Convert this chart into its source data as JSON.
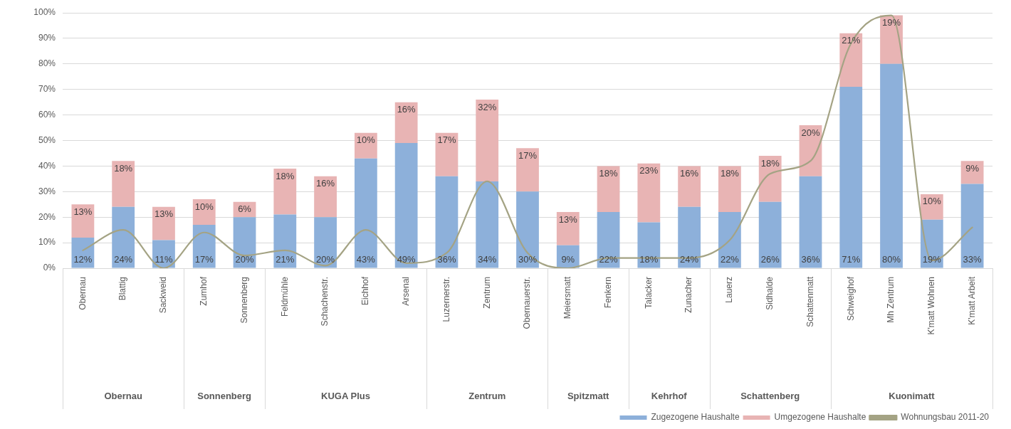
{
  "chart_data": {
    "type": "bar",
    "stacked": true,
    "categories": [
      "Obernau",
      "Blattig",
      "Sackweid",
      "Zumhof",
      "Sonnenberg",
      "Feldmühle",
      "Schachenstr.",
      "Eichhof",
      "Arsenal",
      "Luzernerstr.",
      "Zentrum",
      "Obernauerstr.",
      "Meiersmatt",
      "Fenkern",
      "Talacker",
      "Zunacher",
      "Lauerz",
      "Sidhalde",
      "Schattenmatt",
      "Schweighof",
      "Mh Zentrum",
      "K'matt Wohnen",
      "K'matt Arbeit"
    ],
    "series": [
      {
        "name": "Zugezogene Haushalte",
        "color": "#8db0da",
        "values": [
          12,
          24,
          11,
          17,
          20,
          21,
          20,
          43,
          49,
          36,
          34,
          30,
          9,
          22,
          18,
          24,
          22,
          26,
          36,
          71,
          80,
          19,
          33
        ],
        "value_labels": [
          "12%",
          "24%",
          "11%",
          "17%",
          "20%",
          "21%",
          "20%",
          "43%",
          "49%",
          "36%",
          "34%",
          "30%",
          "9%",
          "22%",
          "18%",
          "24%",
          "22%",
          "26%",
          "36%",
          "71%",
          "80%",
          "19%",
          "33%"
        ]
      },
      {
        "name": "Umgezogene Haushalte",
        "color": "#e8b4b4",
        "values": [
          13,
          18,
          13,
          10,
          6,
          18,
          16,
          10,
          16,
          17,
          32,
          17,
          13,
          18,
          23,
          16,
          18,
          18,
          20,
          21,
          19,
          10,
          9
        ],
        "value_labels": [
          "13%",
          "18%",
          "13%",
          "10%",
          "6%",
          "18%",
          "16%",
          "10%",
          "16%",
          "17%",
          "32%",
          "17%",
          "13%",
          "18%",
          "23%",
          "16%",
          "18%",
          "18%",
          "20%",
          "21%",
          "19%",
          "10%",
          "9%"
        ]
      },
      {
        "name": "Wohnungsbau 2011-20",
        "type": "line",
        "color": "#a4a384",
        "values": [
          7,
          15,
          0,
          14,
          5,
          7,
          1,
          15,
          2,
          6,
          34,
          6,
          0,
          4,
          4,
          4,
          11,
          37,
          42,
          88,
          99,
          3,
          16
        ]
      }
    ],
    "ylim": [
      0,
      100
    ],
    "yticks": [
      {
        "value": 0,
        "label": "0%"
      },
      {
        "value": 10,
        "label": "10%"
      },
      {
        "value": 20,
        "label": "20%"
      },
      {
        "value": 30,
        "label": "30%"
      },
      {
        "value": 40,
        "label": "40%"
      },
      {
        "value": 50,
        "label": "50%"
      },
      {
        "value": 60,
        "label": "60%"
      },
      {
        "value": 70,
        "label": "70%"
      },
      {
        "value": 80,
        "label": "80%"
      },
      {
        "value": 90,
        "label": "90%"
      },
      {
        "value": 100,
        "label": "100%"
      }
    ],
    "grid": "y",
    "legend": "bottom right",
    "marker": "none",
    "annotations": [
      "Obernau",
      "Sonnenberg",
      "KUGA Plus",
      "Zentrum",
      "Spitzmatt",
      "Kehrhof",
      "Schattenberg",
      "Kuonimatt"
    ]
  }
}
